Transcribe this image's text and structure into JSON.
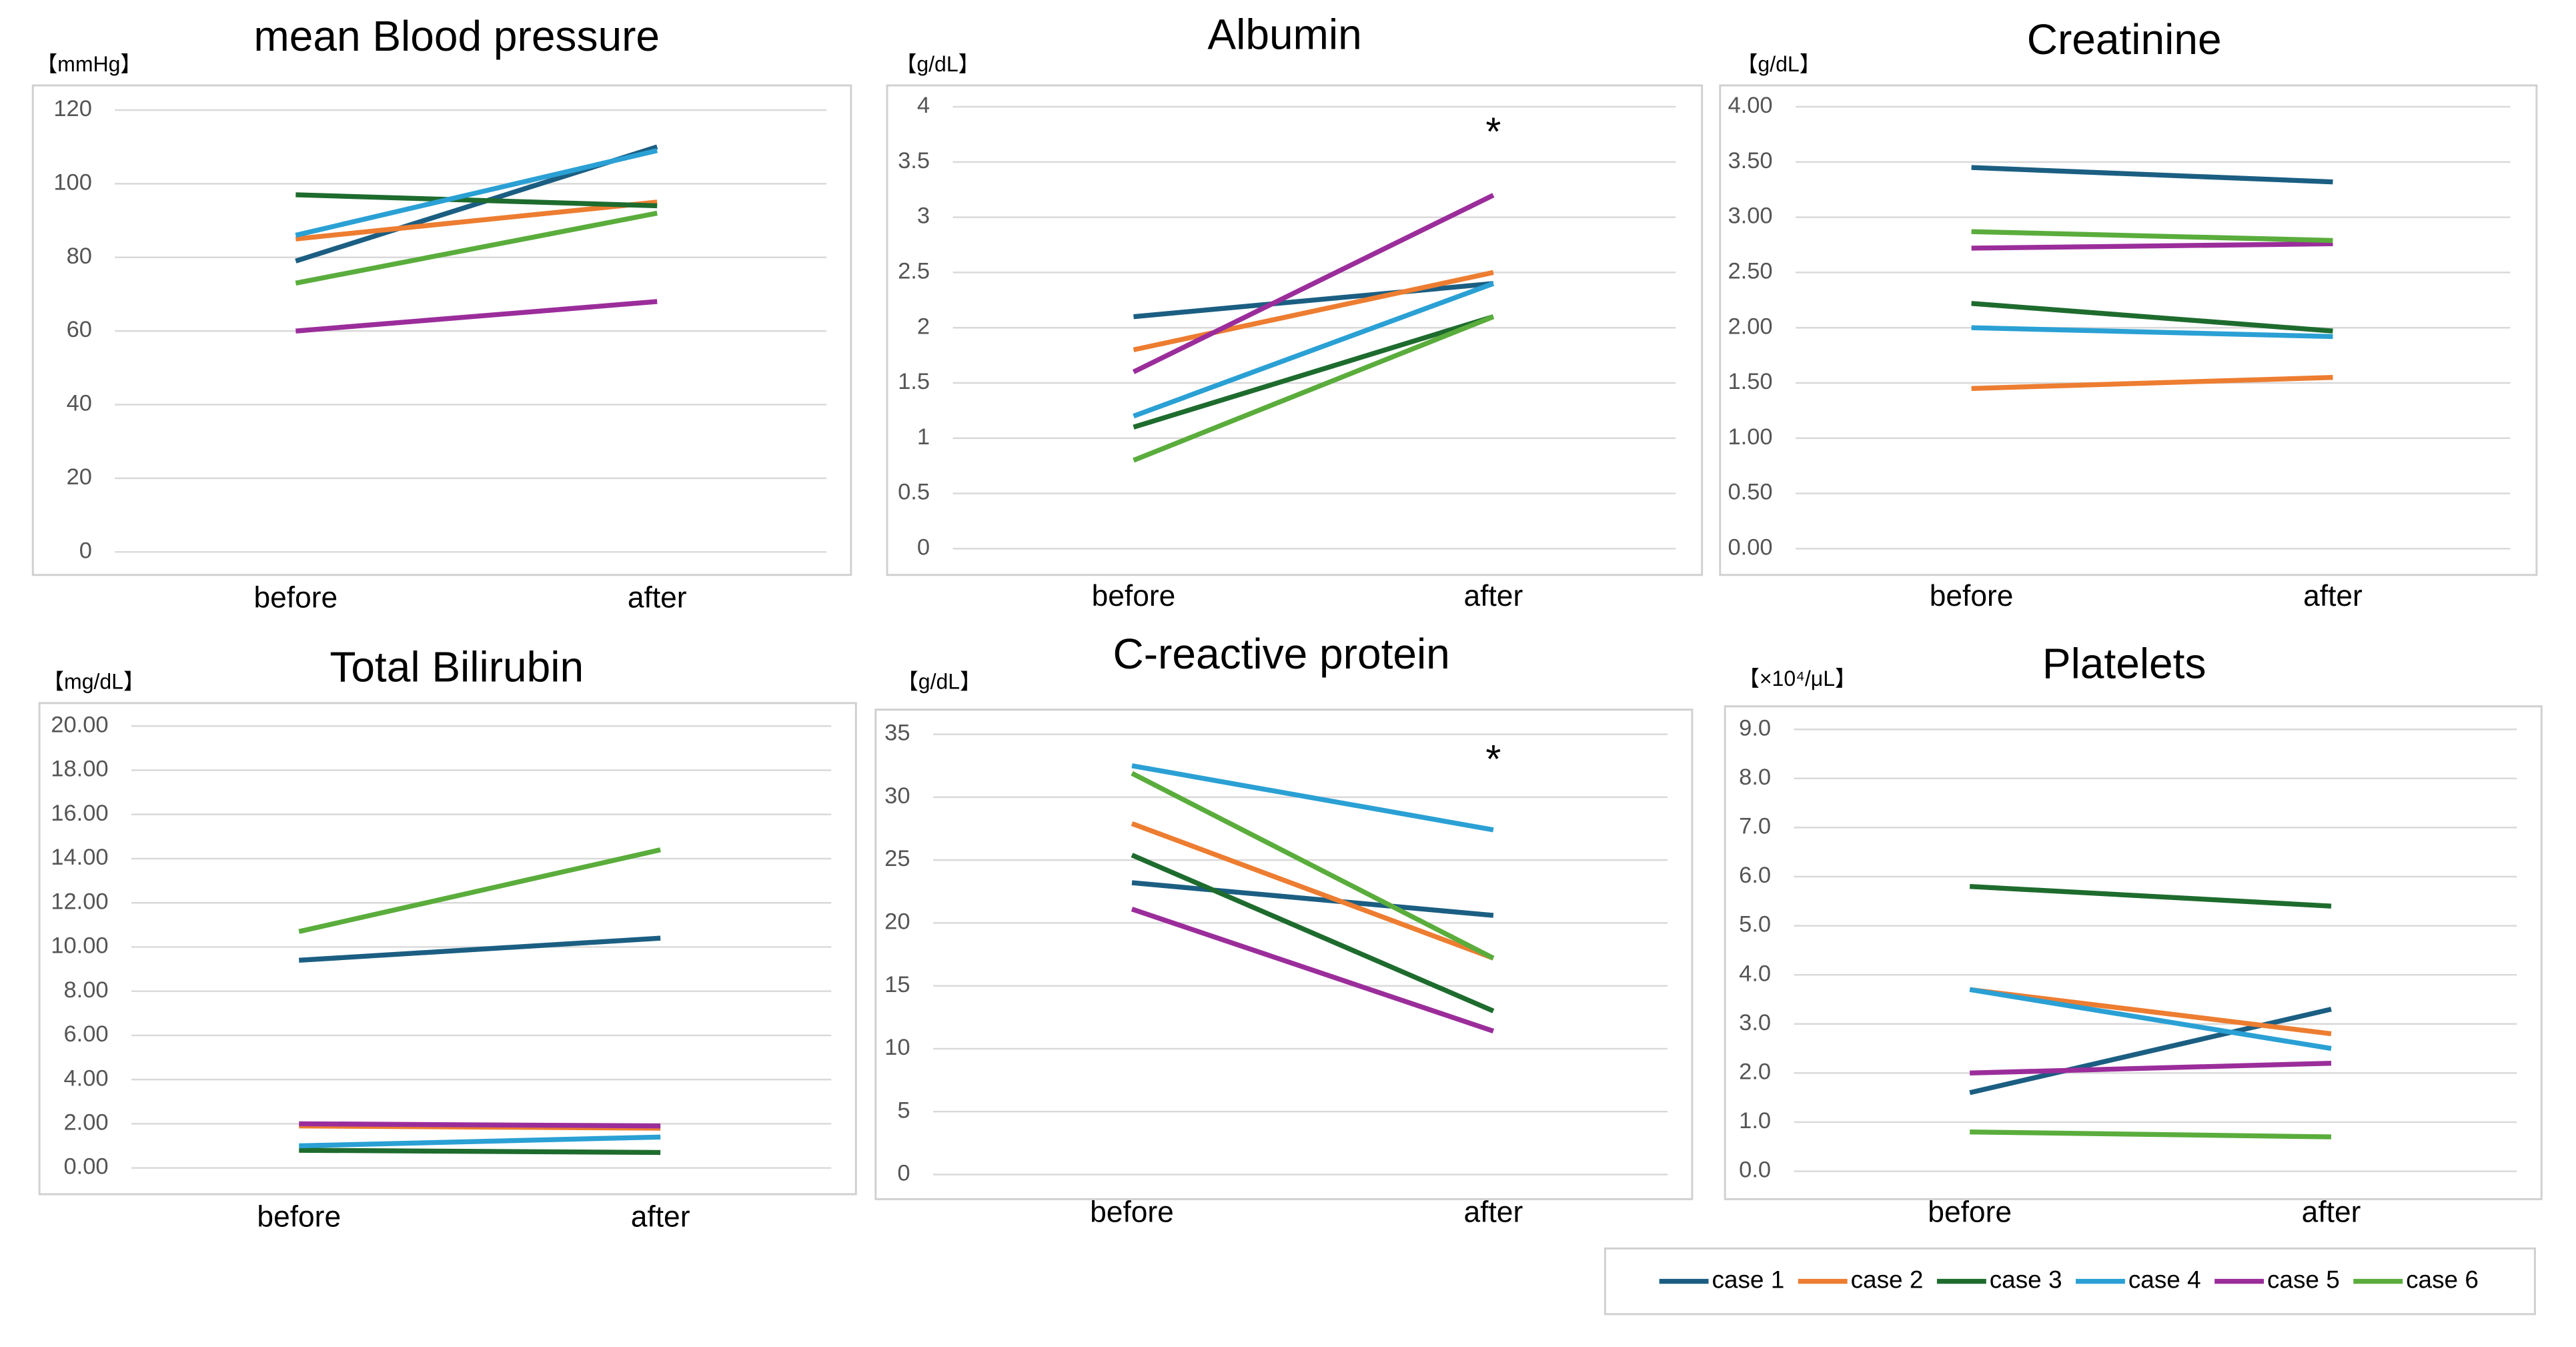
{
  "chart_data": [
    {
      "type": "line",
      "title": "mean Blood pressure",
      "unit": "【mmHg】",
      "categories": [
        "before",
        "after"
      ],
      "ylim": [
        0,
        120
      ],
      "yticks": [
        0,
        20,
        40,
        60,
        80,
        100,
        120
      ],
      "series": [
        {
          "values": [
            79,
            110
          ]
        },
        {
          "values": [
            85,
            95
          ]
        },
        {
          "values": [
            97,
            94
          ]
        },
        {
          "values": [
            86,
            109
          ]
        },
        {
          "values": [
            60,
            68
          ]
        },
        {
          "values": [
            73,
            92
          ]
        }
      ]
    },
    {
      "type": "line",
      "title": "Albumin",
      "unit": "【g/dL】",
      "categories": [
        "before",
        "after"
      ],
      "annotation": "*",
      "ylim": [
        0,
        4
      ],
      "yticks": [
        0,
        0.5,
        1,
        1.5,
        2,
        2.5,
        3,
        3.5,
        4
      ],
      "series": [
        {
          "values": [
            2.1,
            2.4
          ]
        },
        {
          "values": [
            1.8,
            2.5
          ]
        },
        {
          "values": [
            1.1,
            2.1
          ]
        },
        {
          "values": [
            1.2,
            2.4
          ]
        },
        {
          "values": [
            1.6,
            3.2
          ]
        },
        {
          "values": [
            0.8,
            2.1
          ]
        }
      ]
    },
    {
      "type": "line",
      "title": "Creatinine",
      "unit": "【g/dL】",
      "categories": [
        "before",
        "after"
      ],
      "ylim": [
        0,
        4
      ],
      "yticks": [
        {
          "value": 0,
          "label": "0.00"
        },
        {
          "value": 0.5,
          "label": "0.50"
        },
        {
          "value": 1,
          "label": "1.00"
        },
        {
          "value": 1.5,
          "label": "1.50"
        },
        {
          "value": 2,
          "label": "2.00"
        },
        {
          "value": 2.5,
          "label": "2.50"
        },
        {
          "value": 3,
          "label": "3.00"
        },
        {
          "value": 3.5,
          "label": "3.50"
        },
        {
          "value": 4,
          "label": "4.00"
        }
      ],
      "series": [
        {
          "values": [
            3.45,
            3.32
          ]
        },
        {
          "values": [
            1.45,
            1.55
          ]
        },
        {
          "values": [
            2.22,
            1.97
          ]
        },
        {
          "values": [
            2.0,
            1.92
          ]
        },
        {
          "values": [
            2.72,
            2.76
          ]
        },
        {
          "values": [
            2.87,
            2.79
          ]
        }
      ]
    },
    {
      "type": "line",
      "title": "Total Bilirubin",
      "unit": "【mg/dL】",
      "categories": [
        "before",
        "after"
      ],
      "ylim": [
        0,
        20
      ],
      "yticks": [
        {
          "value": 0,
          "label": "0.00"
        },
        {
          "value": 2,
          "label": "2.00"
        },
        {
          "value": 4,
          "label": "4.00"
        },
        {
          "value": 6,
          "label": "6.00"
        },
        {
          "value": 8,
          "label": "8.00"
        },
        {
          "value": 10,
          "label": "10.00"
        },
        {
          "value": 12,
          "label": "12.00"
        },
        {
          "value": 14,
          "label": "14.00"
        },
        {
          "value": 16,
          "label": "16.00"
        },
        {
          "value": 18,
          "label": "18.00"
        },
        {
          "value": 20,
          "label": "20.00"
        }
      ],
      "series": [
        {
          "values": [
            9.4,
            10.4
          ]
        },
        {
          "values": [
            1.9,
            1.8
          ]
        },
        {
          "values": [
            0.8,
            0.7
          ]
        },
        {
          "values": [
            1.0,
            1.4
          ]
        },
        {
          "values": [
            2.0,
            1.9
          ]
        },
        {
          "values": [
            10.7,
            14.4
          ]
        }
      ]
    },
    {
      "type": "line",
      "title": "C-reactive protein",
      "unit": "【g/dL】",
      "categories": [
        "before",
        "after"
      ],
      "annotation": "*",
      "ylim": [
        0,
        35
      ],
      "yticks": [
        0,
        5,
        10,
        15,
        20,
        25,
        30,
        35
      ],
      "series": [
        {
          "values": [
            23.2,
            20.6
          ]
        },
        {
          "values": [
            27.9,
            17.2
          ]
        },
        {
          "values": [
            25.4,
            13.0
          ]
        },
        {
          "values": [
            32.5,
            27.4
          ]
        },
        {
          "values": [
            21.1,
            11.4
          ]
        },
        {
          "values": [
            31.9,
            17.2
          ]
        }
      ]
    },
    {
      "type": "line",
      "title": "Platelets",
      "unit": "【×10⁴/μL】",
      "categories": [
        "before",
        "after"
      ],
      "ylim": [
        0,
        9
      ],
      "yticks": [
        {
          "value": 0,
          "label": "0.0"
        },
        {
          "value": 1,
          "label": "1.0"
        },
        {
          "value": 2,
          "label": "2.0"
        },
        {
          "value": 3,
          "label": "3.0"
        },
        {
          "value": 4,
          "label": "4.0"
        },
        {
          "value": 5,
          "label": "5.0"
        },
        {
          "value": 6,
          "label": "6.0"
        },
        {
          "value": 7,
          "label": "7.0"
        },
        {
          "value": 8,
          "label": "8.0"
        },
        {
          "value": 9,
          "label": "9.0"
        }
      ],
      "series": [
        {
          "values": [
            1.6,
            3.3
          ]
        },
        {
          "values": [
            3.7,
            2.8
          ]
        },
        {
          "values": [
            5.8,
            5.4
          ]
        },
        {
          "values": [
            3.7,
            2.5
          ]
        },
        {
          "values": [
            2.0,
            2.2
          ]
        },
        {
          "values": [
            0.8,
            0.7
          ]
        }
      ]
    }
  ],
  "legend": {
    "series": [
      {
        "name": "case 1",
        "color": "#1b5e82"
      },
      {
        "name": "case 2",
        "color": "#ed7d31"
      },
      {
        "name": "case 3",
        "color": "#1e6b2e"
      },
      {
        "name": "case 4",
        "color": "#2aa0d4"
      },
      {
        "name": "case 5",
        "color": "#9b2d9b"
      },
      {
        "name": "case 6",
        "color": "#5aad3c"
      }
    ]
  }
}
